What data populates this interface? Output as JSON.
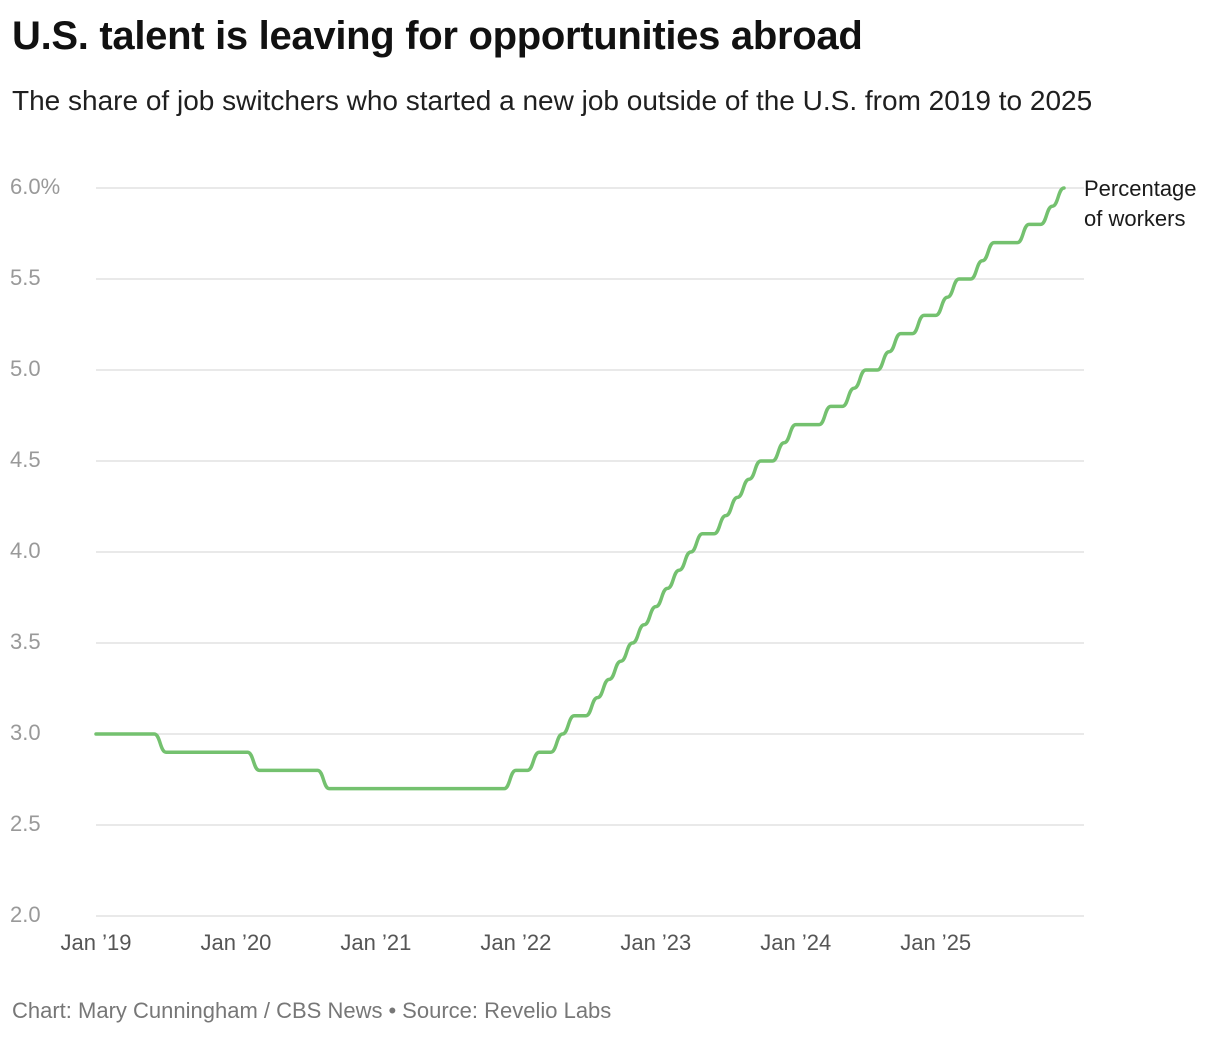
{
  "title": "U.S. talent is leaving for opportunities abroad",
  "subtitle": "The share of job switchers who started a new job outside of the U.S. from 2019 to 2025",
  "footer": {
    "credit": "Chart: Mary Cunningham / CBS News",
    "separator": "•",
    "source": "Source: Revelio Labs"
  },
  "colors": {
    "line": "#74c16f",
    "grid": "#e2e2e2",
    "tick": "#999999"
  },
  "chart_data": {
    "type": "line",
    "title": "U.S. talent is leaving for opportunities abroad",
    "subtitle": "The share of job switchers who started a new job outside of the U.S. from 2019 to 2025",
    "xlabel": "",
    "ylabel": "",
    "ylim": [
      2.0,
      6.0
    ],
    "xlim": [
      "2019-01",
      "2025-12"
    ],
    "yticks": [
      2.0,
      2.5,
      3.0,
      3.5,
      4.0,
      4.5,
      5.0,
      5.5,
      6.0
    ],
    "ytick_labels": [
      "2.0",
      "2.5",
      "3.0",
      "3.5",
      "4.0",
      "4.5",
      "5.0",
      "5.5",
      "6.0%"
    ],
    "xticks": [
      "2019-01",
      "2020-01",
      "2021-01",
      "2022-01",
      "2023-01",
      "2024-01",
      "2025-01"
    ],
    "xtick_labels": [
      "Jan ’19",
      "Jan ’20",
      "Jan ’21",
      "Jan ’22",
      "Jan ’23",
      "Jan ’24",
      "Jan ’25"
    ],
    "grid": true,
    "series": [
      {
        "name": "Percentage of workers",
        "x": [
          "2019-01",
          "2019-02",
          "2019-03",
          "2019-04",
          "2019-05",
          "2019-06",
          "2019-07",
          "2019-08",
          "2019-09",
          "2019-10",
          "2019-11",
          "2019-12",
          "2020-01",
          "2020-02",
          "2020-03",
          "2020-04",
          "2020-05",
          "2020-06",
          "2020-07",
          "2020-08",
          "2020-09",
          "2020-10",
          "2020-11",
          "2020-12",
          "2021-01",
          "2021-02",
          "2021-03",
          "2021-04",
          "2021-05",
          "2021-06",
          "2021-07",
          "2021-08",
          "2021-09",
          "2021-10",
          "2021-11",
          "2021-12",
          "2022-01",
          "2022-02",
          "2022-03",
          "2022-04",
          "2022-05",
          "2022-06",
          "2022-07",
          "2022-08",
          "2022-09",
          "2022-10",
          "2022-11",
          "2022-12",
          "2023-01",
          "2023-02",
          "2023-03",
          "2023-04",
          "2023-05",
          "2023-06",
          "2023-07",
          "2023-08",
          "2023-09",
          "2023-10",
          "2023-11",
          "2023-12",
          "2024-01",
          "2024-02",
          "2024-03",
          "2024-04",
          "2024-05",
          "2024-06",
          "2024-07",
          "2024-08",
          "2024-09",
          "2024-10",
          "2024-11",
          "2024-12",
          "2025-01",
          "2025-02",
          "2025-03",
          "2025-04",
          "2025-05",
          "2025-06",
          "2025-07",
          "2025-08",
          "2025-09",
          "2025-10",
          "2025-11",
          "2025-12"
        ],
        "y": [
          3.0,
          3.0,
          3.0,
          3.0,
          3.0,
          3.0,
          2.9,
          2.9,
          2.9,
          2.9,
          2.9,
          2.9,
          2.9,
          2.9,
          2.8,
          2.8,
          2.8,
          2.8,
          2.8,
          2.8,
          2.7,
          2.7,
          2.7,
          2.7,
          2.7,
          2.7,
          2.7,
          2.7,
          2.7,
          2.7,
          2.7,
          2.7,
          2.7,
          2.7,
          2.7,
          2.7,
          2.8,
          2.8,
          2.9,
          2.9,
          3.0,
          3.1,
          3.1,
          3.2,
          3.3,
          3.4,
          3.5,
          3.6,
          3.7,
          3.8,
          3.9,
          4.0,
          4.1,
          4.1,
          4.2,
          4.3,
          4.4,
          4.5,
          4.5,
          4.6,
          4.7,
          4.7,
          4.7,
          4.8,
          4.8,
          4.9,
          5.0,
          5.0,
          5.1,
          5.2,
          5.2,
          5.3,
          5.3,
          5.4,
          5.5,
          5.5,
          5.6,
          5.7,
          5.7,
          5.7,
          5.8,
          5.8,
          5.9,
          6.0
        ]
      }
    ]
  }
}
